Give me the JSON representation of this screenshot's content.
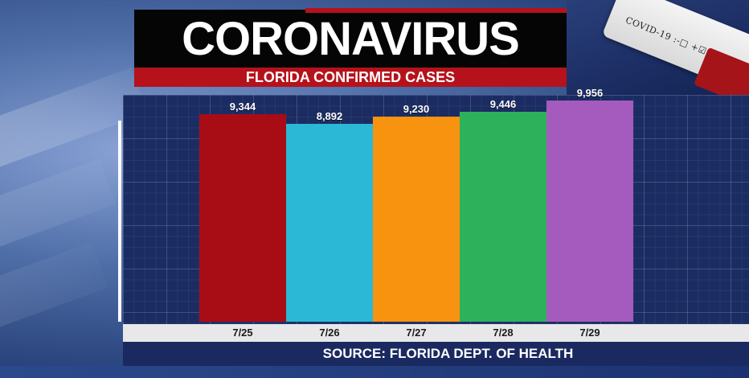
{
  "header": {
    "title": "CORONAVIRUS",
    "subtitle": "FLORIDA CONFIRMED CASES"
  },
  "background": {
    "vial_label": "COVID-19 :-□ +☑"
  },
  "footer": {
    "source": "SOURCE: FLORIDA DEPT. OF HEALTH"
  },
  "chart_data": {
    "type": "bar",
    "categories": [
      "7/25",
      "7/26",
      "7/27",
      "7/28",
      "7/29"
    ],
    "values": [
      9344,
      8892,
      9230,
      9446,
      9956
    ],
    "value_labels": [
      "9,344",
      "8,892",
      "9,230",
      "9,446",
      "9,956"
    ],
    "bar_colors": [
      "#a80c15",
      "#2bb8d6",
      "#f7930e",
      "#2db15a",
      "#a45bbd"
    ],
    "ylim": [
      0,
      10200
    ],
    "grid": true,
    "legend": "none"
  }
}
